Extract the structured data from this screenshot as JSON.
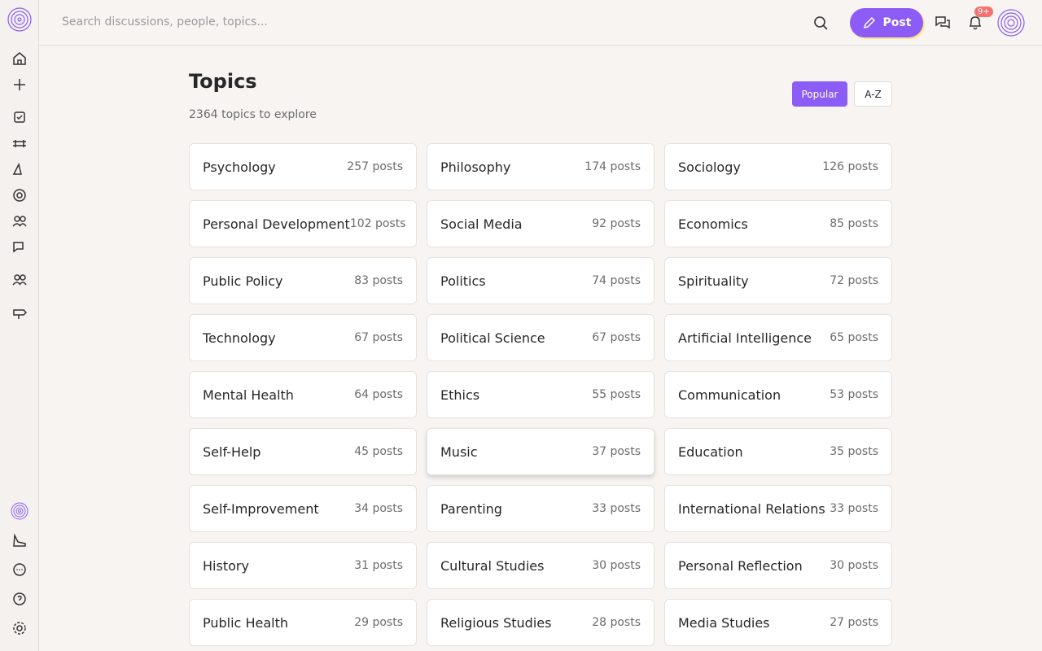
{
  "header": {
    "search_placeholder": "Search discussions, people, topics...",
    "post_button": "Post",
    "notification_badge": "9+"
  },
  "page": {
    "title": "Topics",
    "subtitle": "2364 topics to explore",
    "sort_options": [
      "Popular",
      "A-Z"
    ]
  },
  "topics": [
    {
      "name": "Psychology",
      "posts": "257 posts"
    },
    {
      "name": "Philosophy",
      "posts": "174 posts"
    },
    {
      "name": "Sociology",
      "posts": "126 posts"
    },
    {
      "name": "Personal Development",
      "posts": "102 posts"
    },
    {
      "name": "Social Media",
      "posts": "92 posts"
    },
    {
      "name": "Economics",
      "posts": "85 posts"
    },
    {
      "name": "Public Policy",
      "posts": "83 posts"
    },
    {
      "name": "Politics",
      "posts": "74 posts"
    },
    {
      "name": "Spirituality",
      "posts": "72 posts"
    },
    {
      "name": "Technology",
      "posts": "67 posts"
    },
    {
      "name": "Political Science",
      "posts": "67 posts"
    },
    {
      "name": "Artificial Intelligence",
      "posts": "65 posts"
    },
    {
      "name": "Mental Health",
      "posts": "64 posts"
    },
    {
      "name": "Ethics",
      "posts": "55 posts"
    },
    {
      "name": "Communication",
      "posts": "53 posts"
    },
    {
      "name": "Self-Help",
      "posts": "45 posts"
    },
    {
      "name": "Music",
      "posts": "37 posts"
    },
    {
      "name": "Education",
      "posts": "35 posts"
    },
    {
      "name": "Self-Improvement",
      "posts": "34 posts"
    },
    {
      "name": "Parenting",
      "posts": "33 posts"
    },
    {
      "name": "International Relations",
      "posts": "33 posts"
    },
    {
      "name": "History",
      "posts": "31 posts"
    },
    {
      "name": "Cultural Studies",
      "posts": "30 posts"
    },
    {
      "name": "Personal Reflection",
      "posts": "30 posts"
    },
    {
      "name": "Public Health",
      "posts": "29 posts"
    },
    {
      "name": "Religious Studies",
      "posts": "28 posts"
    },
    {
      "name": "Media Studies",
      "posts": "27 posts"
    }
  ]
}
